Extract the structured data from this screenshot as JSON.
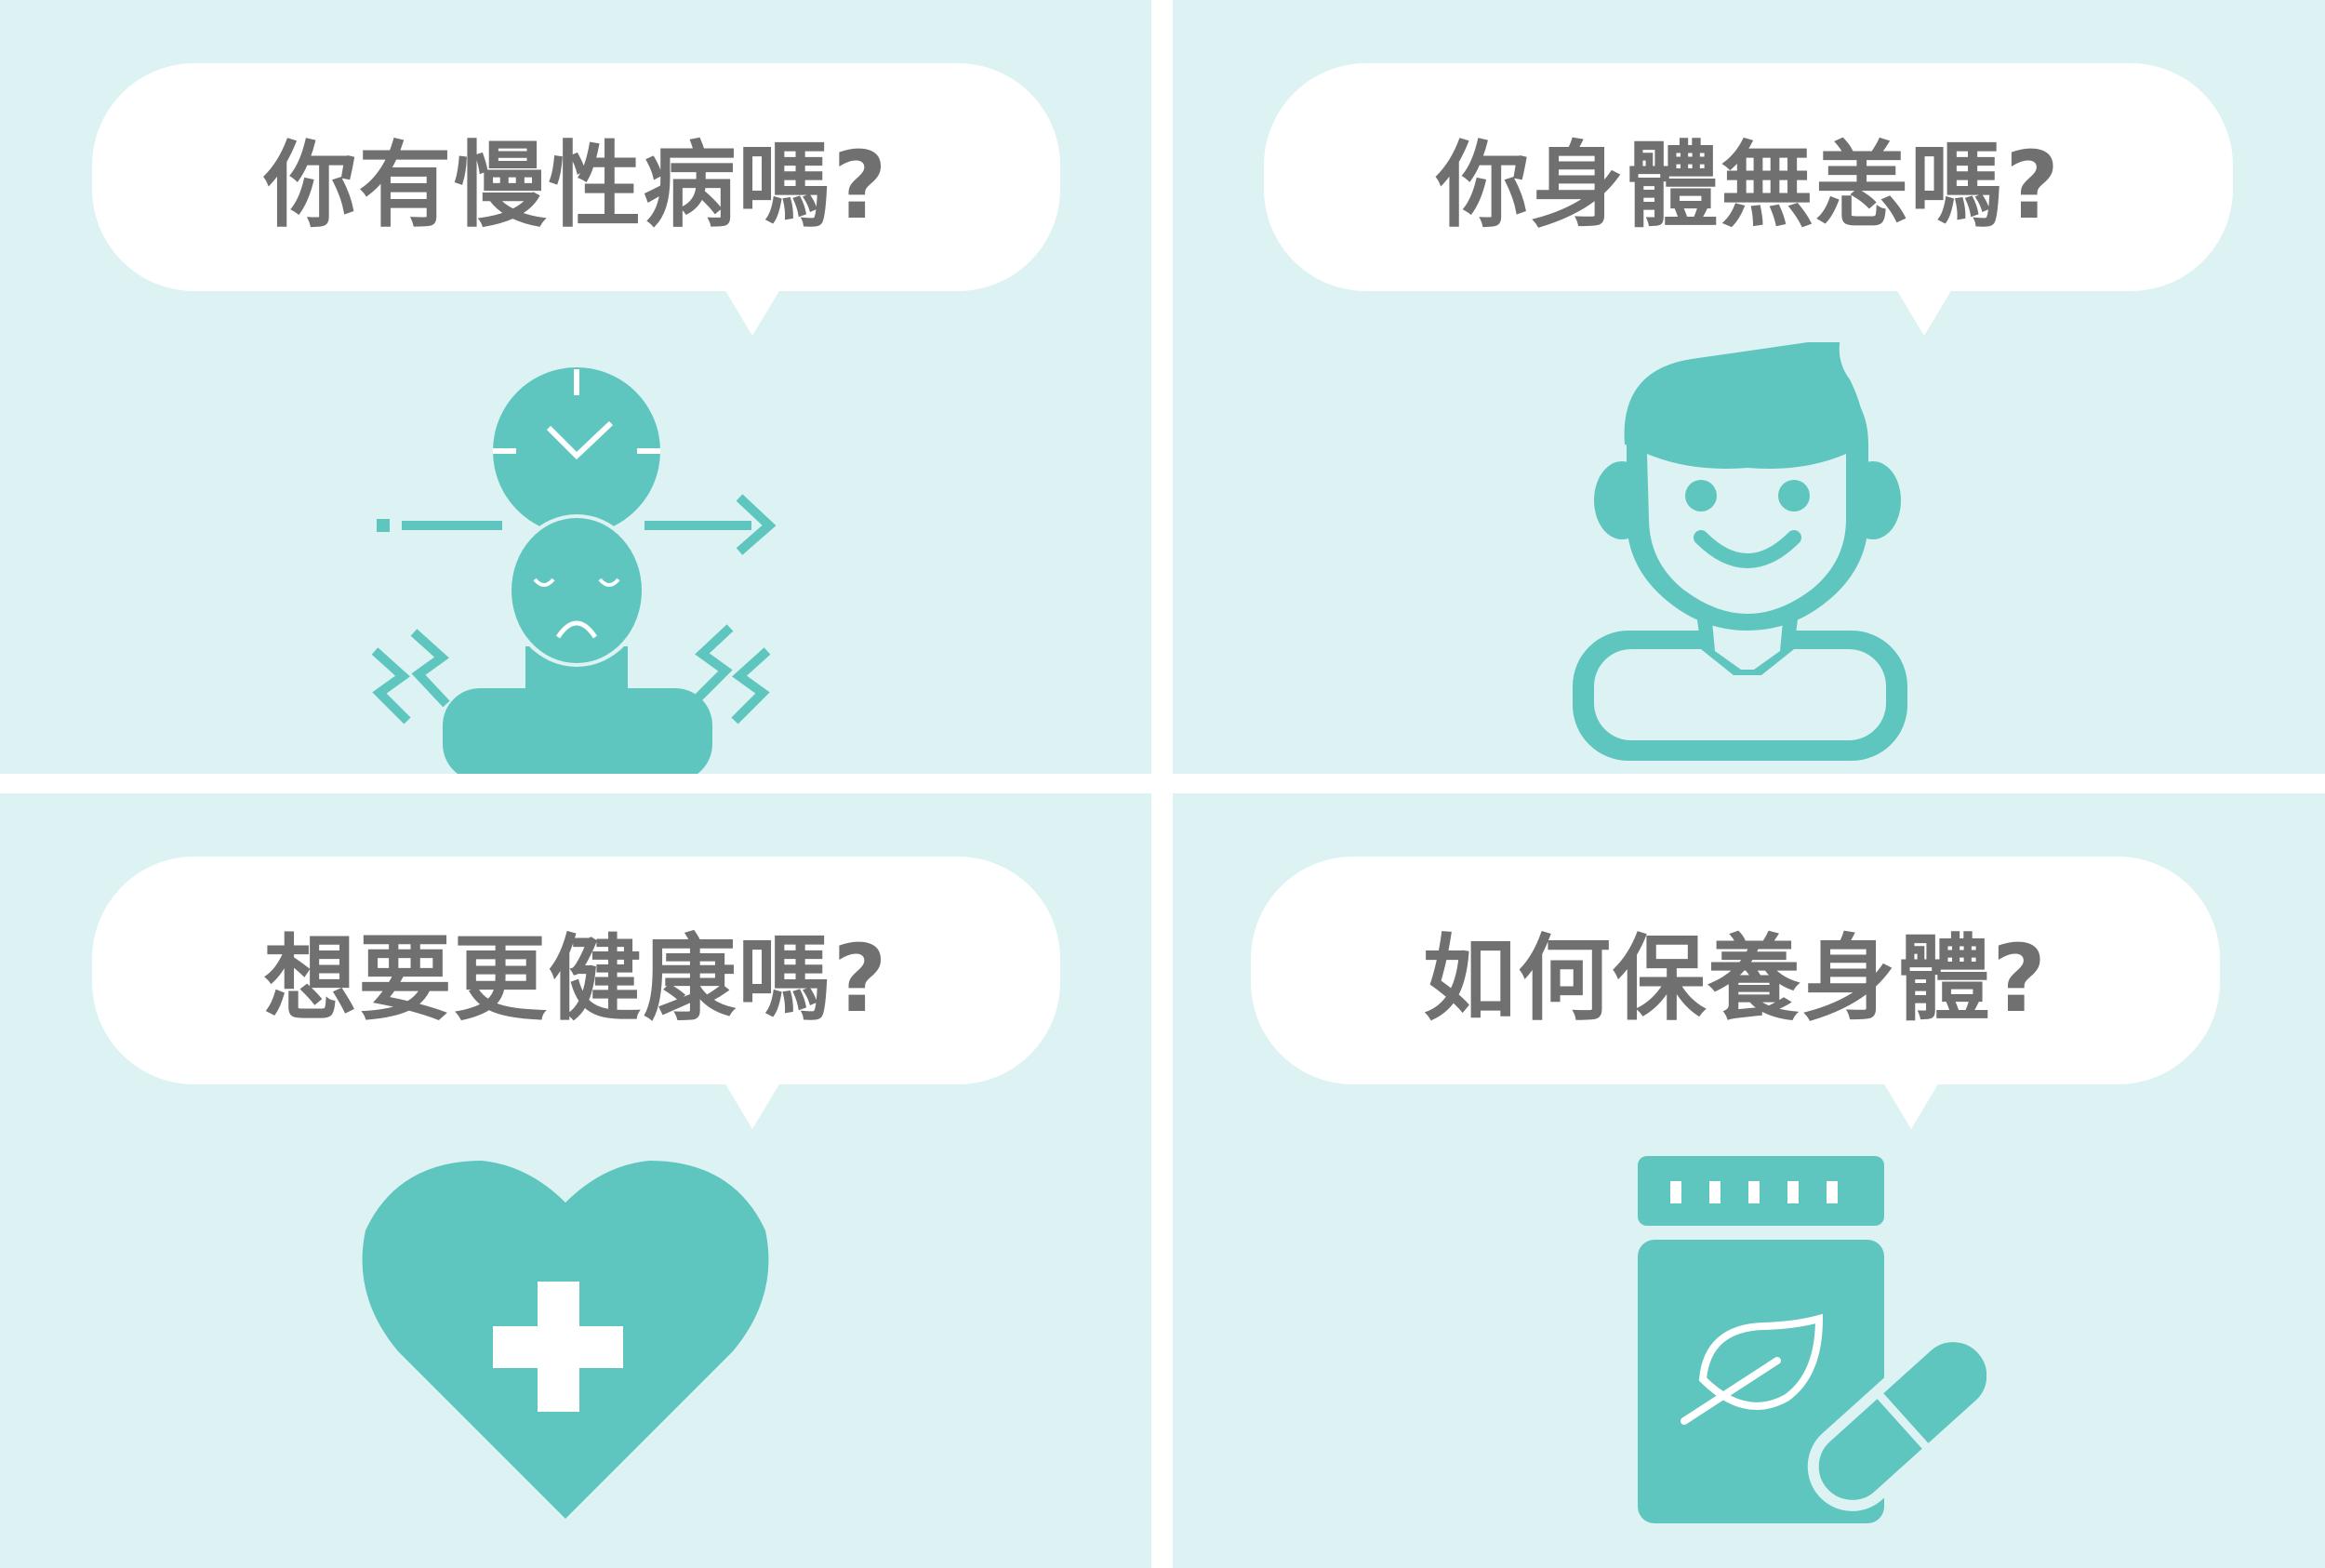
{
  "panels": [
    {
      "question": "你有慢性病嗎?",
      "icon": "sick-person-clock-icon"
    },
    {
      "question": "你身體無恙嗎?",
      "icon": "smiling-man-icon"
    },
    {
      "question": "想要更健康嗎?",
      "icon": "heart-medical-cross-icon"
    },
    {
      "question": "如何保養身體?",
      "icon": "supplement-bottle-pill-icon"
    }
  ],
  "colors": {
    "panel_background": "#ddf2f2",
    "icon_teal": "#5fc6bf",
    "text_gray": "#707070",
    "bubble": "#ffffff",
    "divider": "#ffffff"
  }
}
